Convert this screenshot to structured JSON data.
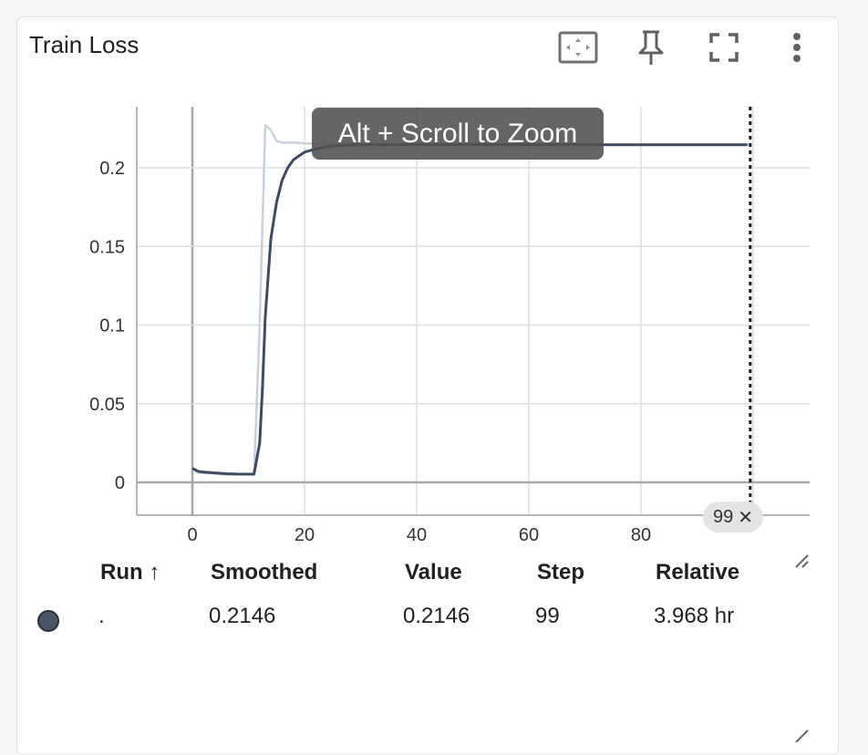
{
  "card": {
    "title": "Train Loss"
  },
  "toolbar": {
    "icons": [
      "fit-domain-icon",
      "pin-icon",
      "fullscreen-icon",
      "more-vert-icon"
    ]
  },
  "tooltip": {
    "text": "Alt + Scroll to Zoom"
  },
  "step_chip": {
    "label": "99",
    "close": "✕"
  },
  "table": {
    "headers": {
      "run": "Run ↑",
      "smoothed": "Smoothed",
      "value": "Value",
      "step": "Step",
      "relative": "Relative"
    },
    "rows": [
      {
        "run": ".",
        "smoothed": "0.2146",
        "value": "0.2146",
        "step": "99",
        "relative": "3.968 hr",
        "color": "#4a5668"
      }
    ]
  },
  "chart_data": {
    "type": "line",
    "xlim": [
      -10,
      110
    ],
    "ylim": [
      -0.02,
      0.24
    ],
    "xticks": [
      "0",
      "20",
      "40",
      "60",
      "80"
    ],
    "xtick_values": [
      0,
      20,
      40,
      60,
      80
    ],
    "yticks": [
      "0",
      "0.05",
      "0.1",
      "0.15",
      "0.2"
    ],
    "ytick_values": [
      0,
      0.05,
      0.1,
      0.15,
      0.2
    ],
    "grid": true,
    "vertical_marker_step": 99,
    "series": [
      {
        "role": "raw",
        "color": "#c9d0d9",
        "x": [
          0,
          1,
          2,
          4,
          6,
          8,
          10,
          11,
          12,
          13,
          14,
          15,
          16,
          18,
          20,
          25,
          30,
          40,
          60,
          80,
          99
        ],
        "y": [
          0.009,
          0.006,
          0.006,
          0.0055,
          0.005,
          0.005,
          0.005,
          0.005,
          0.1,
          0.227,
          0.224,
          0.217,
          0.216,
          0.216,
          0.2155,
          0.215,
          0.2148,
          0.2147,
          0.2146,
          0.2146,
          0.2146
        ]
      },
      {
        "role": "smoothed",
        "color": "#3f4b5e",
        "x": [
          0,
          1,
          2,
          4,
          6,
          8,
          10,
          11,
          12,
          12.5,
          13,
          14,
          15,
          16,
          17,
          18,
          20,
          22,
          25,
          30,
          40,
          60,
          80,
          99
        ],
        "y": [
          0.009,
          0.007,
          0.0065,
          0.006,
          0.0055,
          0.0053,
          0.0052,
          0.0052,
          0.025,
          0.06,
          0.105,
          0.155,
          0.178,
          0.192,
          0.2,
          0.205,
          0.21,
          0.212,
          0.214,
          0.2146,
          0.2147,
          0.2146,
          0.2146,
          0.2146
        ]
      }
    ]
  }
}
